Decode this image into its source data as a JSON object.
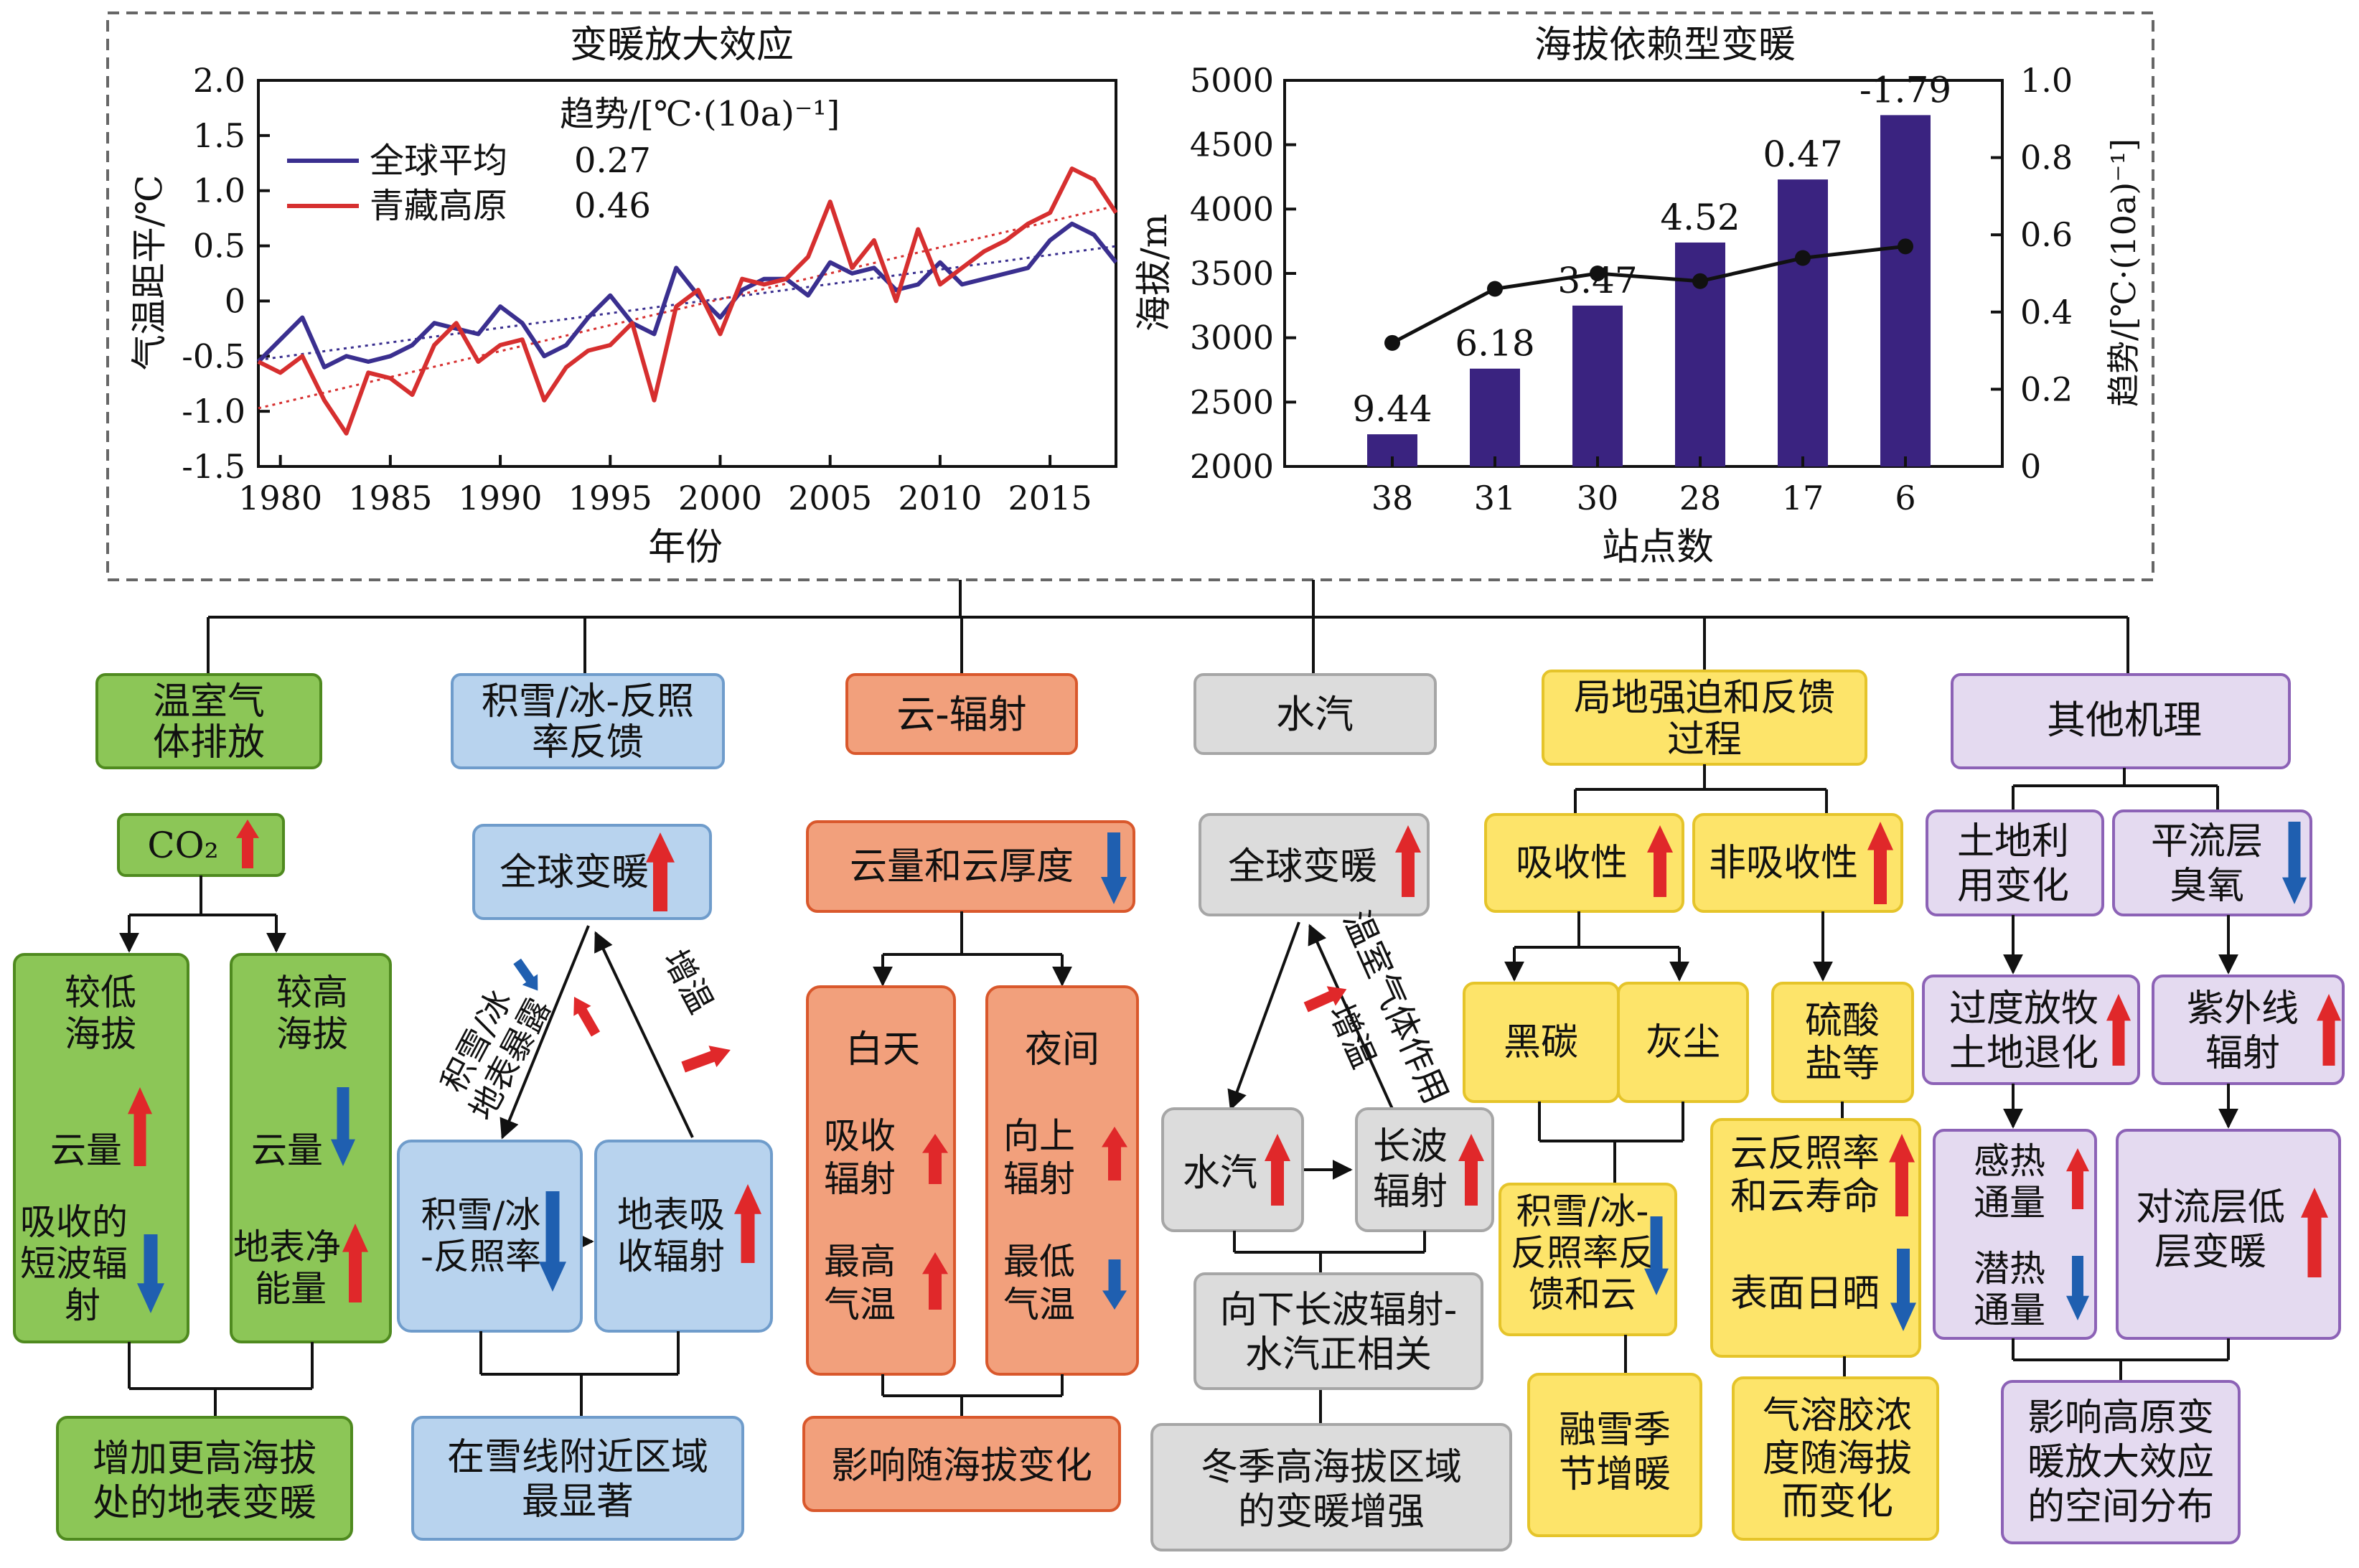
{
  "colors": {
    "global_line": "#3a2f8f",
    "plateau_line": "#d62f2f",
    "bar": "#3a2380",
    "up_arrow": "#e0282a",
    "down_arrow": "#1f5fb0",
    "green_fill": "#8cc657",
    "green_stroke": "#4f8a1f",
    "blue_fill": "#b8d3ee",
    "blue_stroke": "#6f9ccb",
    "orange_fill": "#f2a07c",
    "orange_stroke": "#d9582c",
    "gray_fill": "#dcdcdc",
    "gray_stroke": "#a6a6a6",
    "yellow_fill": "#fde46a",
    "yellow_stroke": "#e5c42a",
    "purple_fill": "#e4daf0",
    "purple_stroke": "#8c62b6"
  },
  "chart_data": [
    {
      "type": "line",
      "title": "变暖放大效应",
      "xlabel": "年份",
      "ylabel": "气温距平/℃",
      "xlim": [
        1979,
        2018
      ],
      "ylim": [
        -1.5,
        2.0
      ],
      "xticks": [
        "1980",
        "1985",
        "1990",
        "1995",
        "2000",
        "2005",
        "2010",
        "2015"
      ],
      "yticks": [
        "2.0",
        "1.5",
        "1.0",
        "0.5",
        "0",
        "-0.5",
        "-1.0",
        "-1.5"
      ],
      "legend_title": "趋势/[℃·(10a)⁻¹]",
      "legend_position": "top-left",
      "years": [
        1979,
        1980,
        1981,
        1982,
        1983,
        1984,
        1985,
        1986,
        1987,
        1988,
        1989,
        1990,
        1991,
        1992,
        1993,
        1994,
        1995,
        1996,
        1997,
        1998,
        1999,
        2000,
        2001,
        2002,
        2003,
        2004,
        2005,
        2006,
        2007,
        2008,
        2009,
        2010,
        2011,
        2012,
        2013,
        2014,
        2015,
        2016,
        2017,
        2018
      ],
      "series": [
        {
          "name": "全球平均",
          "trend": "0.27",
          "values": [
            -0.55,
            -0.35,
            -0.15,
            -0.6,
            -0.5,
            -0.55,
            -0.5,
            -0.4,
            -0.2,
            -0.25,
            -0.3,
            -0.05,
            -0.2,
            -0.5,
            -0.4,
            -0.15,
            0.05,
            -0.2,
            -0.3,
            0.3,
            0.05,
            -0.15,
            0.1,
            0.2,
            0.2,
            0.05,
            0.35,
            0.25,
            0.3,
            0.1,
            0.15,
            0.35,
            0.15,
            0.2,
            0.25,
            0.3,
            0.55,
            0.7,
            0.6,
            0.35
          ]
        },
        {
          "name": "青藏高原",
          "trend": "0.46",
          "values": [
            -0.55,
            -0.65,
            -0.5,
            -0.9,
            -1.2,
            -0.65,
            -0.7,
            -0.85,
            -0.4,
            -0.2,
            -0.55,
            -0.4,
            -0.35,
            -0.9,
            -0.6,
            -0.45,
            -0.4,
            -0.2,
            -0.9,
            -0.05,
            0.1,
            -0.3,
            0.2,
            0.15,
            0.2,
            0.4,
            0.9,
            0.3,
            0.55,
            0.0,
            0.65,
            0.15,
            0.3,
            0.45,
            0.55,
            0.7,
            0.8,
            1.2,
            1.1,
            0.8
          ]
        }
      ],
      "trendlines": true
    },
    {
      "type": "bar",
      "title": "海拔依赖型变暖",
      "xlabel": "站点数",
      "ylabel": "海拔/m",
      "y2label": "趋势/[℃·(10a)⁻¹]",
      "categories": [
        "38",
        "31",
        "30",
        "28",
        "17",
        "6"
      ],
      "ylim": [
        2000,
        5000
      ],
      "y2lim": [
        0,
        1.0
      ],
      "yticks": [
        "5000",
        "4500",
        "4000",
        "3500",
        "3000",
        "2500",
        "2000"
      ],
      "y2ticks": [
        "1.0",
        "0.8",
        "0.6",
        "0.4",
        "0.2",
        "0"
      ],
      "values": [
        2250,
        2760,
        3250,
        3740,
        4230,
        4730
      ],
      "bar_labels": [
        "9.44",
        "6.18",
        "3.47",
        "4.52",
        "0.47",
        "-1.79"
      ],
      "trend_line": [
        0.32,
        0.46,
        0.5,
        0.48,
        0.54,
        0.57
      ]
    }
  ],
  "diagram": {
    "columns": [
      {
        "title": "温室气体排放",
        "color": "green",
        "nodes": {
          "co2": "CO₂",
          "left_title": "较低海拔",
          "left_a": "云量",
          "left_b": "吸收的短波辐射",
          "right_title": "较高海拔",
          "right_a": "云量",
          "right_b": "地表净能量",
          "result": "增加更高海拔处的地表变暖"
        }
      },
      {
        "title": "积雪/冰-反照率反馈",
        "color": "blue",
        "nodes": {
          "top": "全球变暖",
          "left_edge": "积雪/冰地表暴露",
          "right_edge": "增温",
          "left": "积雪/冰-反照率",
          "right": "地表吸收辐射",
          "result": "在雪线附近区域最显著"
        }
      },
      {
        "title": "云-辐射",
        "color": "orange",
        "nodes": {
          "top": "云量和云厚度",
          "day_title": "白天",
          "day_a": "吸收辐射",
          "day_b": "最高气温",
          "night_title": "夜间",
          "night_a": "向上辐射",
          "night_b": "最低气温",
          "result": "影响随海拔变化"
        }
      },
      {
        "title": "水汽",
        "color": "gray",
        "nodes": {
          "top": "全球变暖",
          "left_edge": "增温",
          "right_edge": "温室气体作用",
          "left": "水汽",
          "right": "长波辐射",
          "mid": "向下长波辐射-水汽正相关",
          "result": "冬季高海拔区域的变暖增强"
        }
      },
      {
        "title": "局地强迫和反馈过程",
        "color": "yellow",
        "nodes": {
          "abs": "吸收性",
          "nonabs": "非吸收性",
          "bc": "黑碳",
          "dust": "灰尘",
          "sulfate": "硫酸盐等",
          "snow": "积雪/冰-反照率反馈和云",
          "cloud_a": "云反照率和云寿命",
          "cloud_b": "表面日晒",
          "res_left": "融雪季节增暖",
          "res_right": "气溶胶浓度随海拔而变化"
        }
      },
      {
        "title": "其他机理",
        "color": "purple",
        "nodes": {
          "landuse": "土地利用变化",
          "ozone": "平流层臭氧",
          "graze": "过度放牧土地退化",
          "uv": "紫外线辐射",
          "sens_a": "感热通量",
          "sens_b": "潜热通量",
          "trop": "对流层低层变暖",
          "result": "影响高原变暖放大效应的空间分布"
        }
      }
    ]
  }
}
